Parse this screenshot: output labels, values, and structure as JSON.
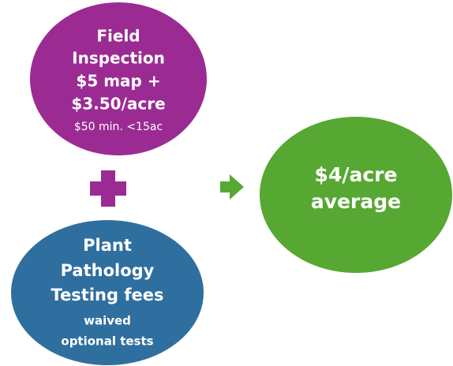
{
  "nodes": [
    {
      "lines": [
        "Field",
        "Inspection",
        "$5 map +",
        "$3.50/acre"
      ],
      "note": [
        "$50 min. <15ac"
      ]
    },
    {
      "lines": [
        "Plant",
        "Pathology",
        "Testing fees"
      ],
      "note": [
        "waived",
        "optional tests"
      ]
    },
    {
      "lines": [
        "$4/acre",
        "average"
      ]
    }
  ]
}
